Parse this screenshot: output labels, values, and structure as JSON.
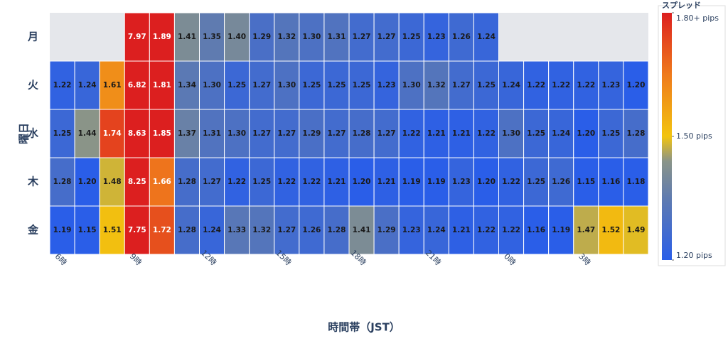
{
  "chart_data": {
    "type": "heatmap",
    "x_label": "時間帯（JST）",
    "y_label": "曜日",
    "categories": [
      "6時",
      null,
      null,
      "9時",
      null,
      null,
      "12時",
      null,
      null,
      "15時",
      null,
      null,
      "18時",
      null,
      null,
      "21時",
      null,
      null,
      "0時",
      null,
      null,
      "3時",
      null,
      null
    ],
    "series": [
      {
        "name": "月",
        "values": [
          null,
          null,
          null,
          7.97,
          1.89,
          1.41,
          1.35,
          1.4,
          1.29,
          1.32,
          1.3,
          1.31,
          1.27,
          1.27,
          1.25,
          1.23,
          1.26,
          1.24,
          null,
          null,
          null,
          null,
          null,
          null
        ],
        "value_labels": [
          null,
          null,
          null,
          "7.97",
          "1.89",
          "1.41",
          "1.35",
          "1.40",
          "1.29",
          "1.32",
          "1.30",
          "1.31",
          "1.27",
          "1.27",
          "1.25",
          "1.23",
          "1.26",
          "1.24",
          null,
          null,
          null,
          null,
          null,
          null
        ]
      },
      {
        "name": "火",
        "values": [
          1.22,
          1.24,
          1.61,
          6.82,
          1.81,
          1.34,
          1.3,
          1.25,
          1.27,
          1.3,
          1.25,
          1.25,
          1.25,
          1.23,
          1.3,
          1.32,
          1.27,
          1.25,
          1.24,
          1.22,
          1.22,
          1.22,
          1.23,
          1.2
        ],
        "value_labels": [
          "1.22",
          "1.24",
          "1.61",
          "6.82",
          "1.81",
          "1.34",
          "1.30",
          "1.25",
          "1.27",
          "1.30",
          "1.25",
          "1.25",
          "1.25",
          "1.23",
          "1.30",
          "1.32",
          "1.27",
          "1.25",
          "1.24",
          "1.22",
          "1.22",
          "1.22",
          "1.23",
          "1.20"
        ]
      },
      {
        "name": "水",
        "values": [
          1.25,
          1.44,
          1.74,
          8.63,
          1.85,
          1.37,
          1.31,
          1.3,
          1.27,
          1.27,
          1.29,
          1.27,
          1.28,
          1.27,
          1.22,
          1.21,
          1.21,
          1.22,
          1.3,
          1.25,
          1.24,
          1.2,
          1.25,
          1.28
        ],
        "value_labels": [
          "1.25",
          "1.44",
          "1.74",
          "8.63",
          "1.85",
          "1.37",
          "1.31",
          "1.30",
          "1.27",
          "1.27",
          "1.29",
          "1.27",
          "1.28",
          "1.27",
          "1.22",
          "1.21",
          "1.21",
          "1.22",
          "1.30",
          "1.25",
          "1.24",
          "1.20",
          "1.25",
          "1.28"
        ]
      },
      {
        "name": "木",
        "values": [
          1.28,
          1.2,
          1.48,
          8.25,
          1.66,
          1.28,
          1.27,
          1.22,
          1.25,
          1.22,
          1.22,
          1.21,
          1.2,
          1.21,
          1.19,
          1.19,
          1.23,
          1.2,
          1.22,
          1.25,
          1.26,
          1.15,
          1.16,
          1.18
        ],
        "value_labels": [
          "1.28",
          "1.20",
          "1.48",
          "8.25",
          "1.66",
          "1.28",
          "1.27",
          "1.22",
          "1.25",
          "1.22",
          "1.22",
          "1.21",
          "1.20",
          "1.21",
          "1.19",
          "1.19",
          "1.23",
          "1.20",
          "1.22",
          "1.25",
          "1.26",
          "1.15",
          "1.16",
          "1.18"
        ]
      },
      {
        "name": "金",
        "values": [
          1.19,
          1.15,
          1.51,
          7.75,
          1.72,
          1.28,
          1.24,
          1.33,
          1.32,
          1.27,
          1.26,
          1.28,
          1.41,
          1.29,
          1.23,
          1.24,
          1.21,
          1.22,
          1.22,
          1.16,
          1.19,
          1.47,
          1.52,
          1.49
        ],
        "value_labels": [
          "1.19",
          "1.15",
          "1.51",
          "7.75",
          "1.72",
          "1.28",
          "1.24",
          "1.33",
          "1.32",
          "1.27",
          "1.26",
          "1.28",
          "1.41",
          "1.29",
          "1.23",
          "1.24",
          "1.21",
          "1.22",
          "1.22",
          "1.16",
          "1.19",
          "1.47",
          "1.52",
          "1.49"
        ]
      }
    ],
    "colorbar_title": "スプレッド",
    "zlim": [
      1.2,
      1.8
    ],
    "zticks": [
      {
        "value": 1.8,
        "label": "1.80+ pips"
      },
      {
        "value": 1.5,
        "label": "1.50 pips"
      },
      {
        "value": 1.2,
        "label": "1.20 pips"
      }
    ],
    "colorscale": [
      [
        0,
        "#2a5ee8"
      ],
      [
        0.25,
        "#5f7bb0"
      ],
      [
        0.4,
        "#8a9488"
      ],
      [
        0.5,
        "#f2c40f"
      ],
      [
        0.75,
        "#ef7a1c"
      ],
      [
        1,
        "#dc1f1f"
      ]
    ]
  }
}
